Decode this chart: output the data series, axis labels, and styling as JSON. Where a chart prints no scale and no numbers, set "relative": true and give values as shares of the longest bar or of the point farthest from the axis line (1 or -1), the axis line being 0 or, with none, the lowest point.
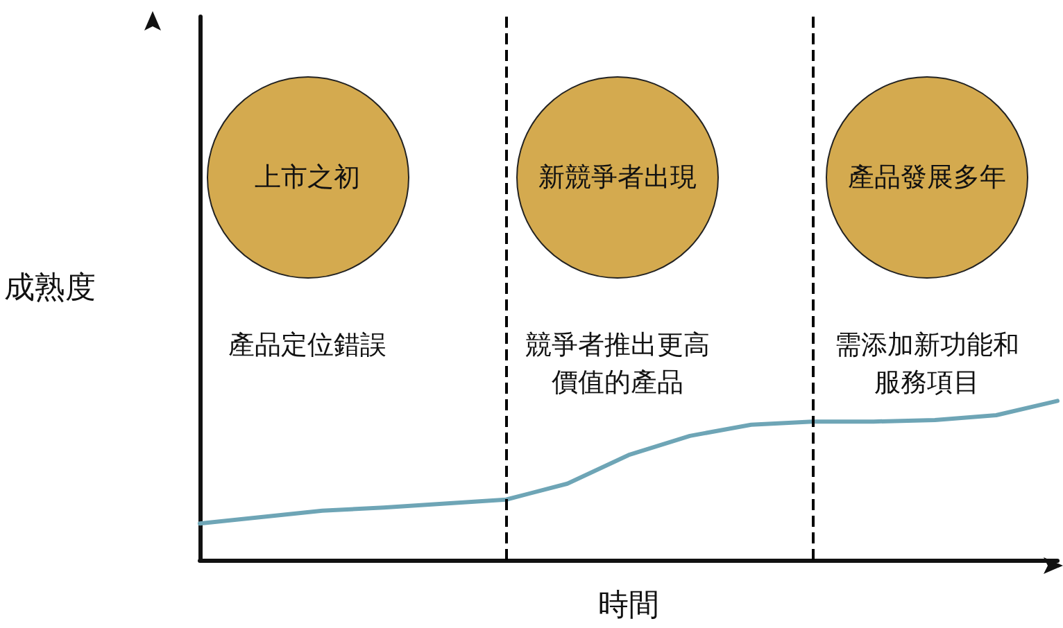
{
  "chart_data": {
    "type": "line",
    "xlabel": "時間",
    "ylabel": "成熟度",
    "relative": true,
    "categories": [
      null,
      null,
      null,
      null,
      null,
      null,
      null,
      null,
      null,
      null,
      null,
      null,
      null,
      null,
      null
    ],
    "series": [
      {
        "color": "#6ea5b6",
        "values": [
          0.23,
          0.27,
          0.31,
          0.33,
          0.355,
          0.38,
          0.48,
          0.66,
          0.78,
          0.85,
          0.87,
          0.87,
          0.88,
          0.91,
          1.0
        ]
      }
    ],
    "marker": "none",
    "line_style": "solid",
    "annotations": [
      "上市之初",
      "新競爭者出現",
      "產品發展多年",
      "產品定位錯誤",
      "競爭者推出更高價值的產品",
      "需添加新功能和服務項目"
    ]
  }
}
